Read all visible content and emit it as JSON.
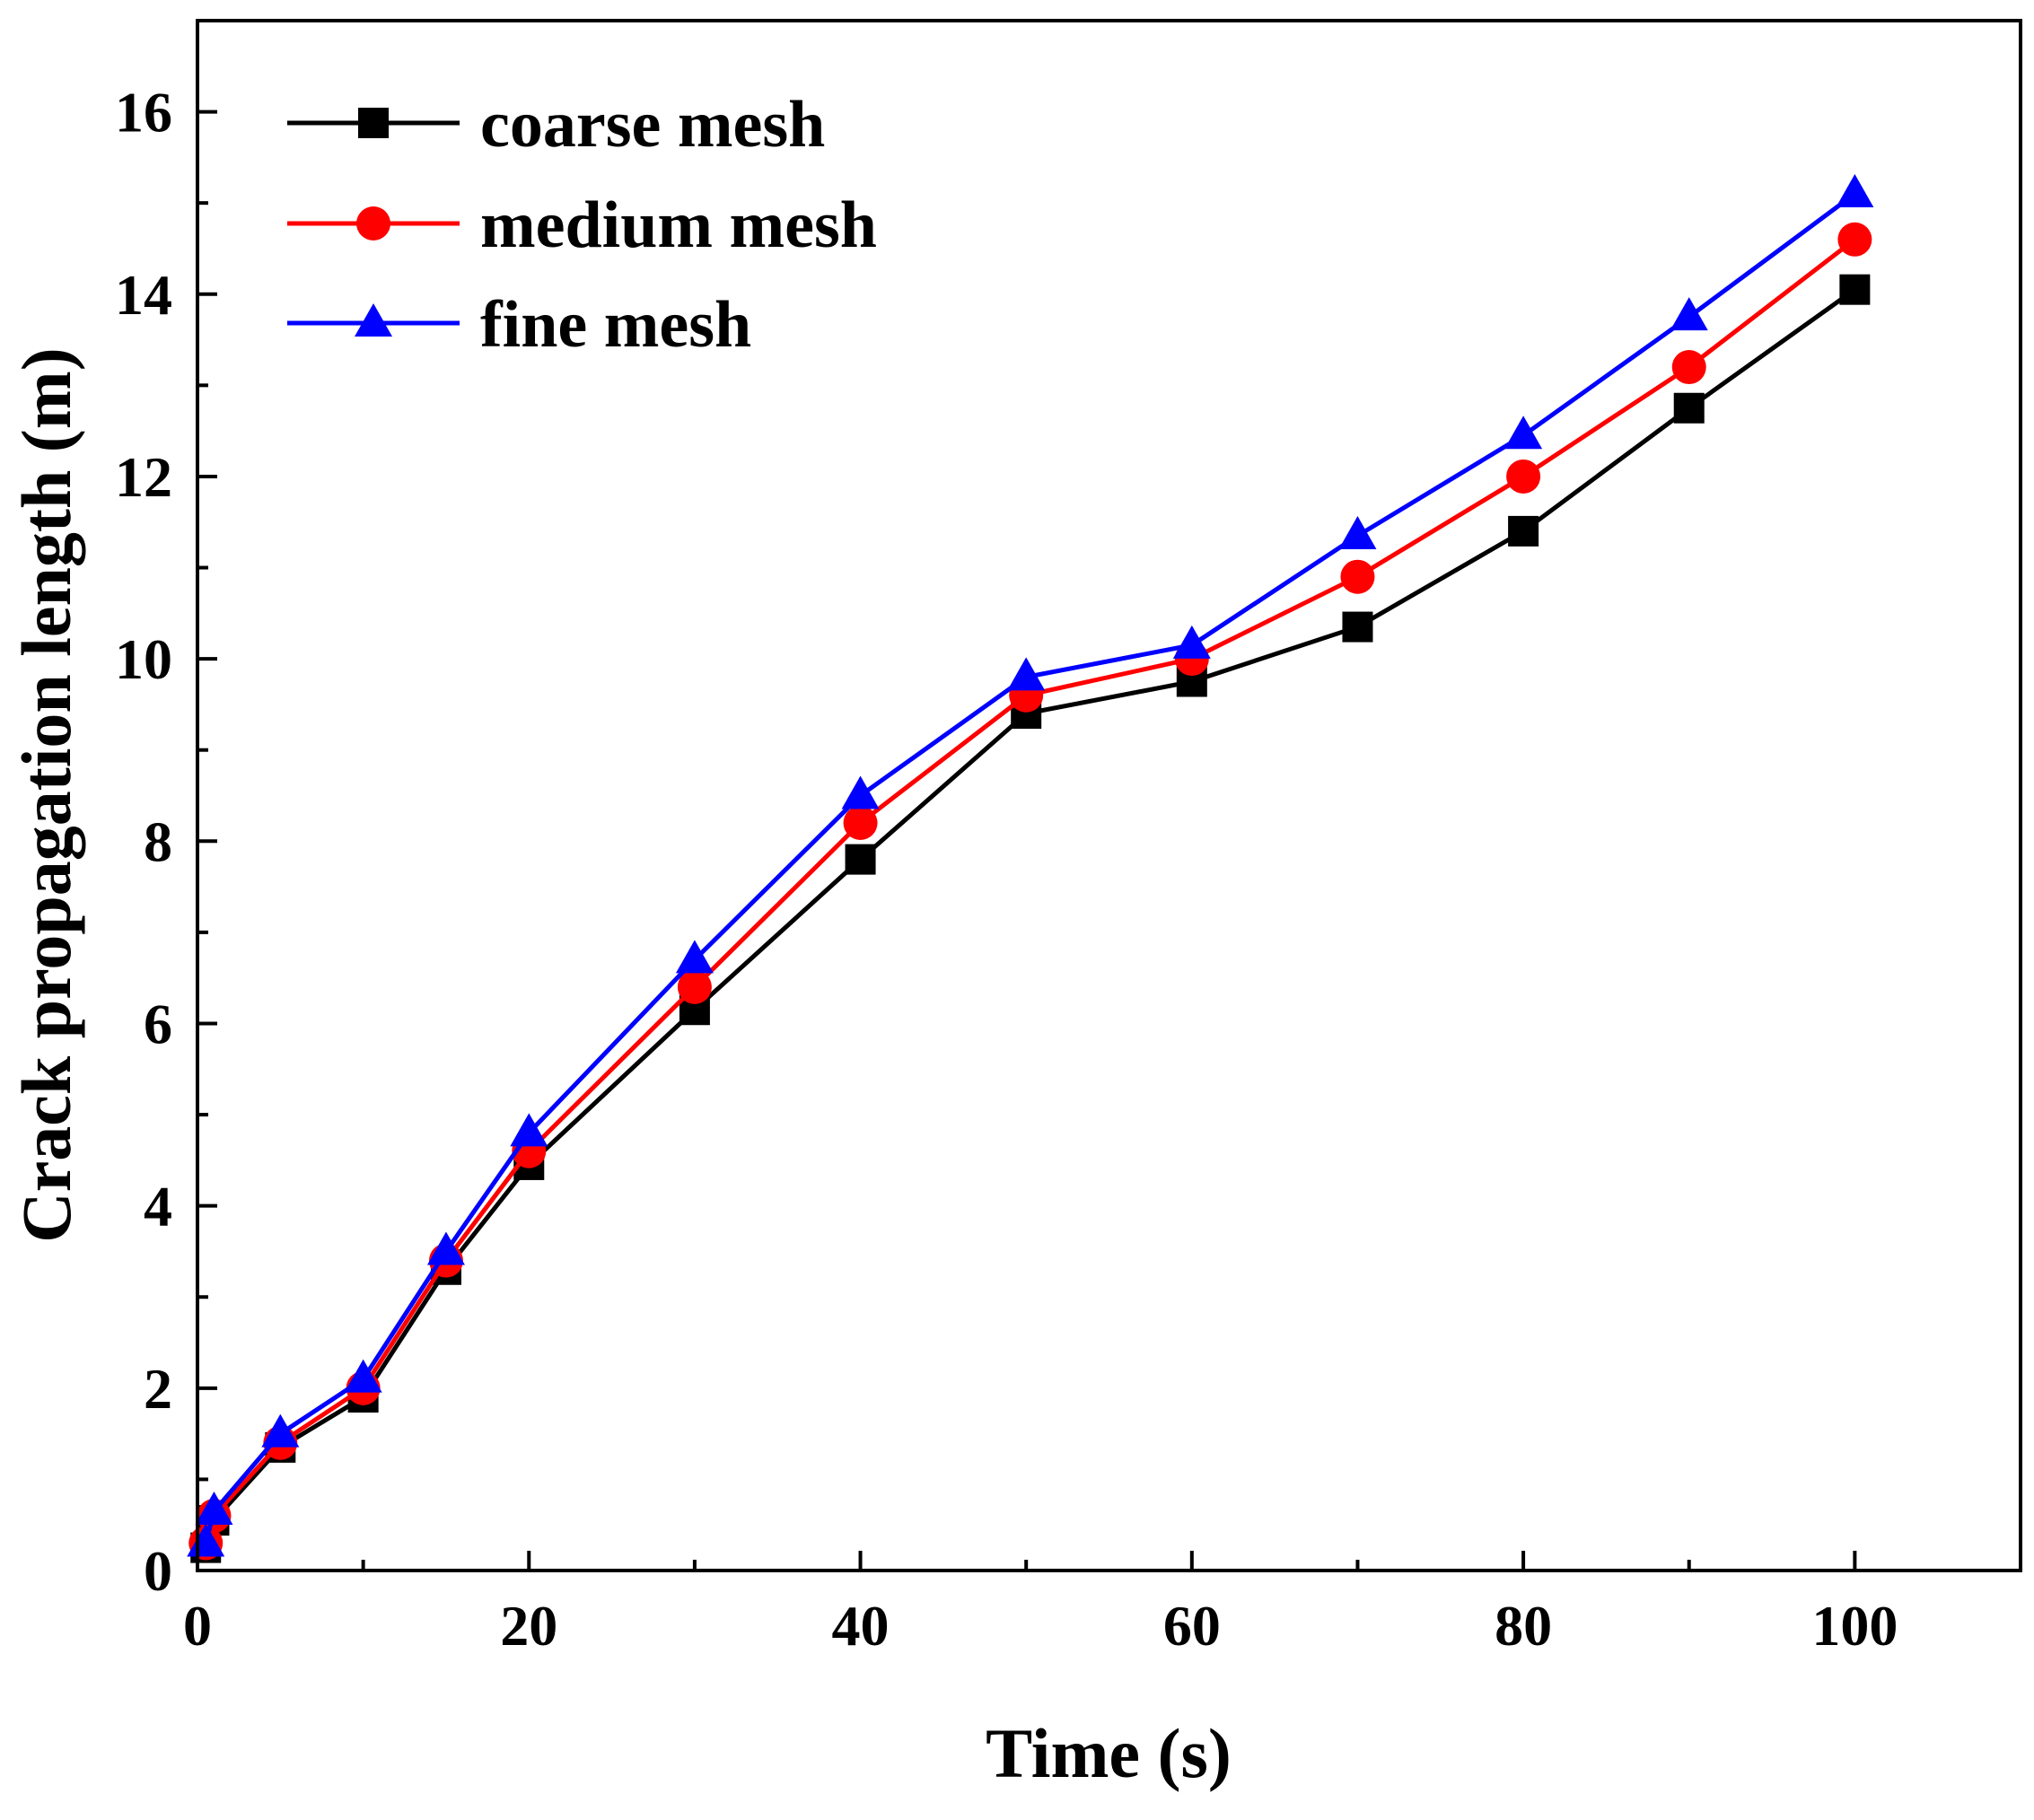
{
  "chart_data": {
    "type": "line",
    "title": "",
    "xlabel": "Time (s)",
    "ylabel": "Crack propagation length (m)",
    "xlim": [
      0,
      110
    ],
    "ylim": [
      0,
      17
    ],
    "xticks": [
      0,
      20,
      40,
      60,
      80,
      100
    ],
    "yticks": [
      0,
      2,
      4,
      6,
      8,
      10,
      12,
      14,
      16
    ],
    "xtick_labels": [
      "0",
      "20",
      "40",
      "60",
      "80",
      "100"
    ],
    "ytick_labels": [
      "0",
      "2",
      "4",
      "6",
      "8",
      "10",
      "12",
      "14",
      "16"
    ],
    "grid": false,
    "legend_position": "top-left",
    "series": [
      {
        "name": "coarse mesh",
        "color": "#000000",
        "marker": "square",
        "x": [
          0.5,
          1,
          5,
          10,
          15,
          20,
          30,
          40,
          50,
          60,
          70,
          80,
          90,
          100
        ],
        "y": [
          0.25,
          0.55,
          1.35,
          1.9,
          3.3,
          4.45,
          6.15,
          7.8,
          9.4,
          9.75,
          10.35,
          11.4,
          12.75,
          14.05
        ]
      },
      {
        "name": "medium mesh",
        "color": "#ff0000",
        "marker": "circle",
        "x": [
          0.5,
          1,
          5,
          10,
          15,
          20,
          30,
          40,
          50,
          60,
          70,
          80,
          90,
          100
        ],
        "y": [
          0.3,
          0.6,
          1.4,
          2.0,
          3.4,
          4.6,
          6.4,
          8.2,
          9.6,
          10.0,
          10.9,
          12.0,
          13.2,
          14.6
        ]
      },
      {
        "name": "fine mesh",
        "color": "#0000ff",
        "marker": "triangle",
        "x": [
          0.5,
          1,
          5,
          10,
          15,
          20,
          30,
          40,
          50,
          60,
          70,
          80,
          90,
          100
        ],
        "y": [
          0.3,
          0.65,
          1.5,
          2.1,
          3.5,
          4.8,
          6.7,
          8.5,
          9.8,
          10.15,
          11.35,
          12.45,
          13.75,
          15.1
        ]
      }
    ]
  }
}
